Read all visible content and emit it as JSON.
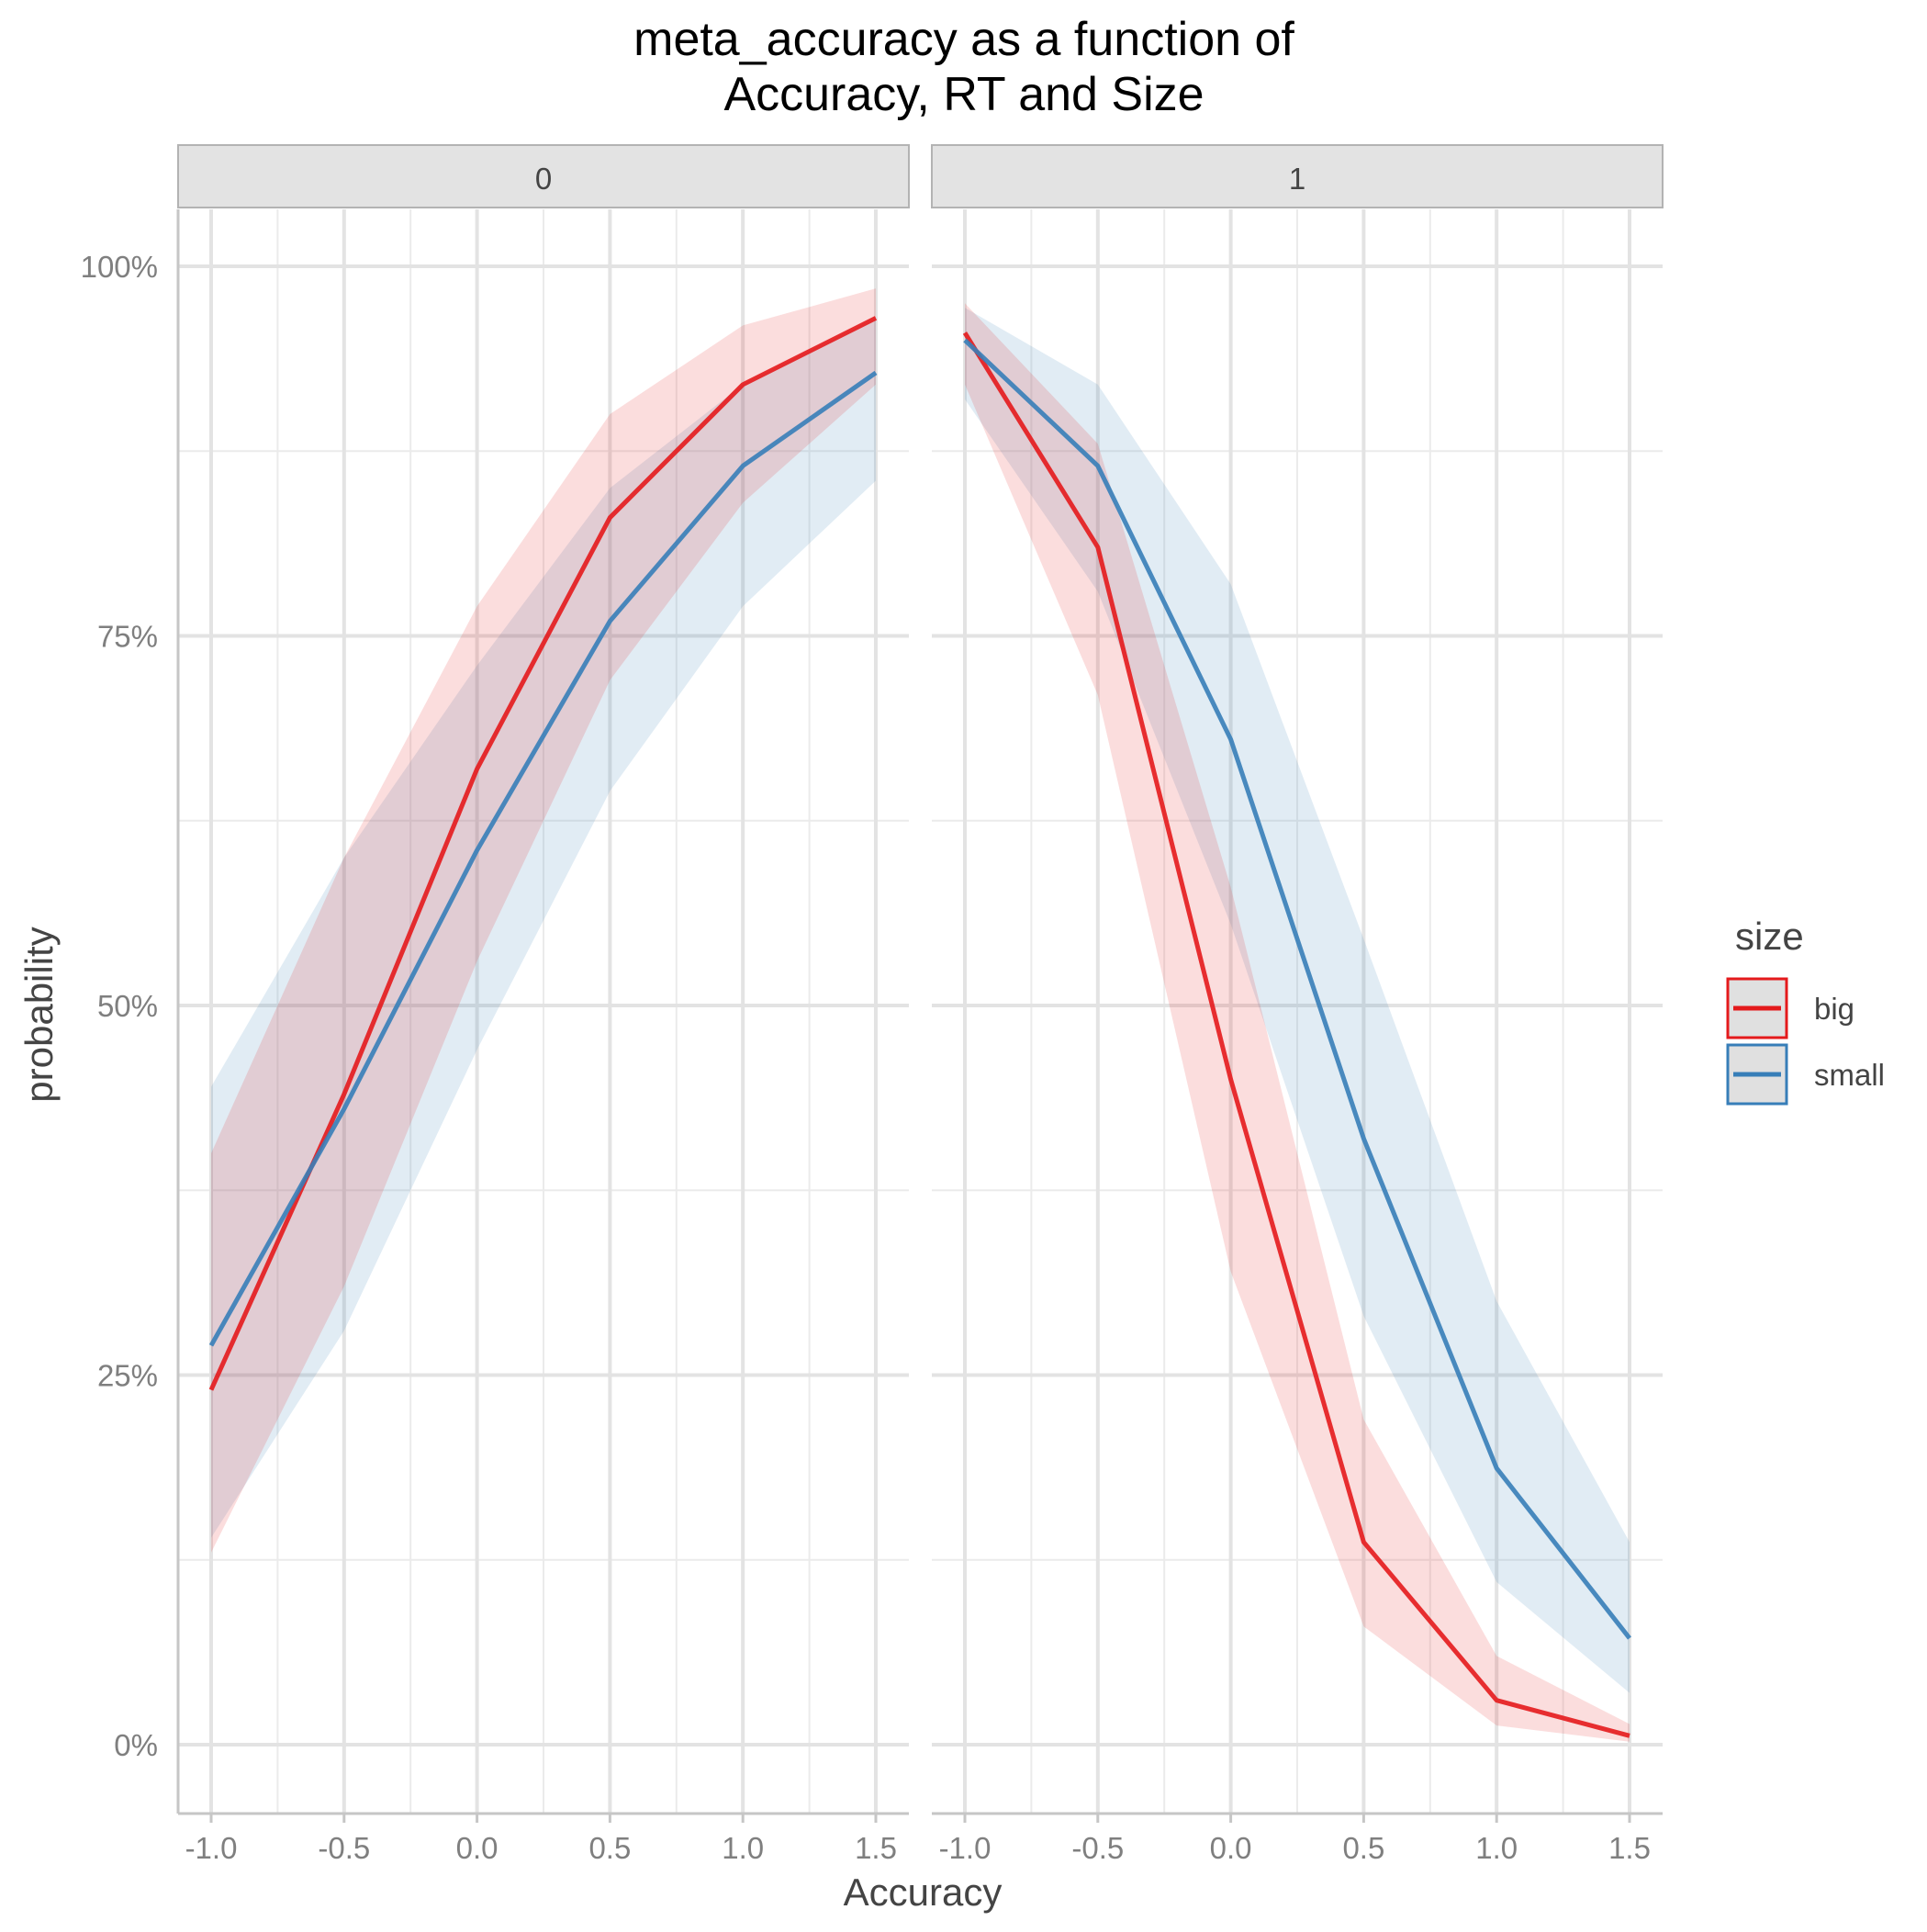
{
  "chart_data": {
    "type": "line",
    "title_lines": [
      "meta_accuracy as a function of",
      "Accuracy, RT and Size"
    ],
    "xlabel": "Accuracy",
    "ylabel": "probability",
    "x_ticks": [
      -1.0,
      -0.5,
      0.0,
      0.5,
      1.0,
      1.5
    ],
    "x_tick_labels": [
      "-1.0",
      "-0.5",
      "0.0",
      "0.5",
      "1.0",
      "1.5"
    ],
    "y_ticks": [
      0,
      0.25,
      0.5,
      0.75,
      1.0
    ],
    "y_tick_labels": [
      "0%",
      "25%",
      "50%",
      "75%",
      "100%"
    ],
    "xlim": [
      -1.0,
      1.5
    ],
    "ylim": [
      0,
      1.0
    ],
    "grid": true,
    "legend": {
      "title": "size",
      "position": "right",
      "entries": [
        "big",
        "small"
      ]
    },
    "colors": {
      "big": "#e41a1c",
      "small": "#377eb8"
    },
    "panels": [
      {
        "strip": "0",
        "x": [
          -1.0,
          -0.5,
          0.0,
          0.5,
          1.0,
          1.5
        ],
        "series": [
          {
            "name": "big",
            "values": [
              0.24,
              0.44,
              0.66,
              0.83,
              0.92,
              0.965
            ],
            "lower": [
              0.13,
              0.31,
              0.53,
              0.72,
              0.84,
              0.92
            ],
            "upper": [
              0.4,
              0.6,
              0.77,
              0.9,
              0.96,
              0.985
            ]
          },
          {
            "name": "small",
            "values": [
              0.27,
              0.43,
              0.605,
              0.76,
              0.865,
              0.928
            ],
            "lower": [
              0.14,
              0.28,
              0.47,
              0.645,
              0.77,
              0.855
            ],
            "upper": [
              0.445,
              0.6,
              0.73,
              0.85,
              0.92,
              0.965
            ]
          }
        ]
      },
      {
        "strip": "1",
        "x": [
          -1.0,
          -0.5,
          0.0,
          0.5,
          1.0,
          1.5
        ],
        "series": [
          {
            "name": "big",
            "values": [
              0.955,
              0.81,
              0.45,
              0.137,
              0.03,
              0.006
            ],
            "lower": [
              0.92,
              0.71,
              0.32,
              0.08,
              0.013,
              0.002
            ],
            "upper": [
              0.975,
              0.88,
              0.58,
              0.22,
              0.06,
              0.014
            ]
          },
          {
            "name": "small",
            "values": [
              0.95,
              0.865,
              0.68,
              0.41,
              0.187,
              0.072
            ],
            "lower": [
              0.91,
              0.78,
              0.555,
              0.29,
              0.11,
              0.035
            ],
            "upper": [
              0.972,
              0.92,
              0.785,
              0.545,
              0.3,
              0.137
            ]
          }
        ]
      }
    ]
  }
}
